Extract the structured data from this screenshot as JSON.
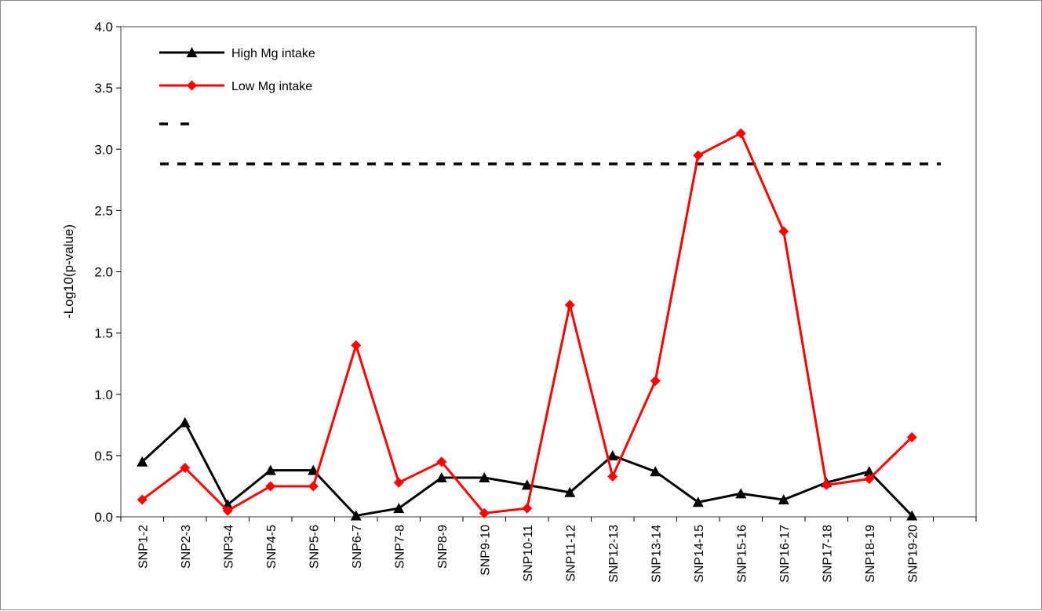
{
  "chart_data": {
    "type": "line",
    "title": "",
    "xlabel": "",
    "ylabel": "-Log10(p-value)",
    "ylim": [
      0,
      4
    ],
    "yticks": [
      "0.0",
      "0.5",
      "1.0",
      "1.5",
      "2.0",
      "2.5",
      "3.0",
      "3.5",
      "4.0"
    ],
    "grid": false,
    "legend_position": "top-left",
    "categories": [
      "SNP1-2",
      "SNP2-3",
      "SNP3-4",
      "SNP4-5",
      "SNP5-6",
      "SNP6-7",
      "SNP7-8",
      "SNP8-9",
      "SNP9-10",
      "SNP10-11",
      "SNP11-12",
      "SNP12-13",
      "SNP13-14",
      "SNP14-15",
      "SNP15-16",
      "SNP16-17",
      "SNP17-18",
      "SNP18-19",
      "SNP19-20"
    ],
    "series": [
      {
        "name": "High Mg intake",
        "color": "#000000",
        "marker": "triangle",
        "values": [
          0.45,
          0.77,
          0.1,
          0.38,
          0.38,
          0.01,
          0.07,
          0.32,
          0.32,
          0.26,
          0.2,
          0.5,
          0.37,
          0.12,
          0.19,
          0.14,
          0.28,
          0.37,
          0.01
        ]
      },
      {
        "name": "Low Mg intake",
        "color": "#ff0000",
        "marker": "diamond",
        "values": [
          0.14,
          0.4,
          0.05,
          0.25,
          0.25,
          1.4,
          0.28,
          0.45,
          0.03,
          0.07,
          1.73,
          0.33,
          1.11,
          2.95,
          3.13,
          2.33,
          0.26,
          0.31,
          0.65
        ]
      }
    ],
    "threshold": {
      "value": 2.88,
      "color": "#000000",
      "style": "dashed"
    }
  }
}
